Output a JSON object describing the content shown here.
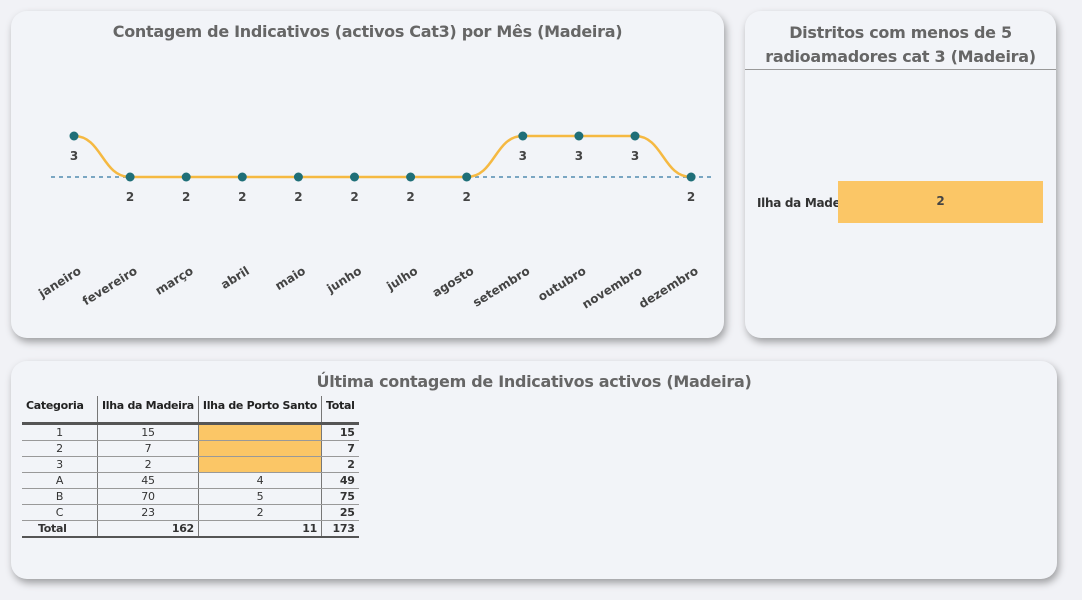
{
  "line_card": {
    "title": "Contagem de Indicativos (activos Cat3) por Mês (Madeira)"
  },
  "bar_card": {
    "title_line1": "Distritos com menos de 5",
    "title_line2": "radioamadores cat 3 (Madeira)"
  },
  "table_card": {
    "title": "Última contagem de Indicativos activos (Madeira)",
    "headers": [
      "Categoria",
      "Ilha da Madeira",
      "Ilha de Porto Santo",
      "Total"
    ],
    "rows": [
      {
        "cat": "1",
        "madeira": "15",
        "porto_santo": "",
        "total": "15"
      },
      {
        "cat": "2",
        "madeira": "7",
        "porto_santo": "",
        "total": "7"
      },
      {
        "cat": "3",
        "madeira": "2",
        "porto_santo": "",
        "total": "2"
      },
      {
        "cat": "A",
        "madeira": "45",
        "porto_santo": "4",
        "total": "49"
      },
      {
        "cat": "B",
        "madeira": "70",
        "porto_santo": "5",
        "total": "75"
      },
      {
        "cat": "C",
        "madeira": "23",
        "porto_santo": "2",
        "total": "25"
      }
    ],
    "total_row": {
      "cat": "Total",
      "madeira": "162",
      "porto_santo": "11",
      "total": "173"
    },
    "highlight_color": "#fbc666"
  },
  "colors": {
    "line": "#f5b942",
    "marker": "#1f6f78",
    "average_line": "#7aa6c2",
    "bar": "#fbc666"
  },
  "chart_data": [
    {
      "type": "line",
      "title": "Contagem de Indicativos (activos Cat3) por Mês (Madeira)",
      "categories": [
        "janeiro",
        "fevereiro",
        "março",
        "abril",
        "maio",
        "junho",
        "julho",
        "agosto",
        "setembro",
        "outubro",
        "novembro",
        "dezembro"
      ],
      "values": [
        3,
        2,
        2,
        2,
        2,
        2,
        2,
        2,
        3,
        3,
        3,
        2
      ],
      "reference_line": 2.33,
      "xlabel": "",
      "ylabel": ""
    },
    {
      "type": "bar",
      "orientation": "horizontal",
      "title": "Distritos com menos de 5 radioamadores cat 3 (Madeira)",
      "categories": [
        "Ilha da Madeira"
      ],
      "values": [
        2
      ]
    }
  ]
}
